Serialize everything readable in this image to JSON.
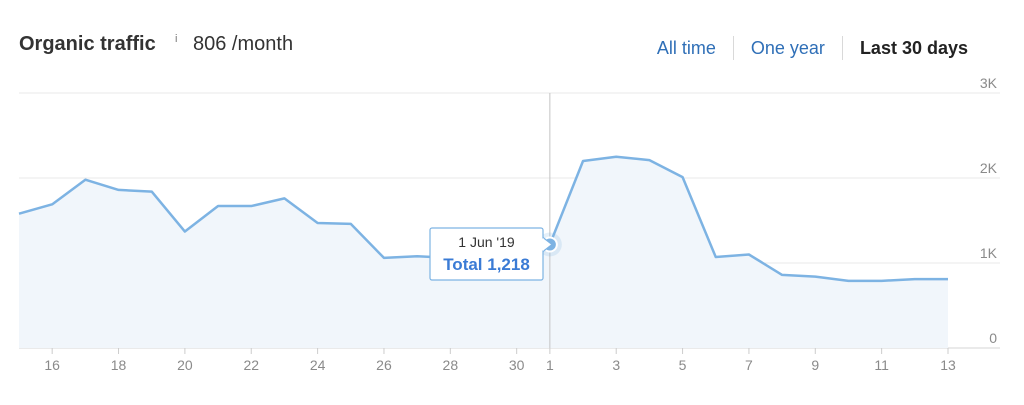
{
  "header": {
    "title": "Organic traffic",
    "info_icon": "i",
    "value": "806 /month",
    "ranges": [
      "All time",
      "One year",
      "Last 30 days"
    ],
    "active_range": "Last 30 days"
  },
  "chart_data": {
    "type": "area",
    "x": [
      "15",
      "16",
      "17",
      "18",
      "19",
      "20",
      "21",
      "22",
      "23",
      "24",
      "25",
      "26",
      "27",
      "28",
      "29",
      "30",
      "1",
      "2",
      "3",
      "4",
      "5",
      "6",
      "7",
      "8",
      "9",
      "10",
      "11",
      "12",
      "13"
    ],
    "x_ticks": [
      "16",
      "18",
      "20",
      "22",
      "24",
      "26",
      "28",
      "30",
      "1",
      "3",
      "5",
      "7",
      "9",
      "11",
      "13"
    ],
    "series": [
      {
        "values": [
          1580,
          1690,
          1980,
          1860,
          1840,
          1370,
          1670,
          1670,
          1760,
          1470,
          1460,
          1060,
          1080,
          1060,
          1070,
          1090,
          1218,
          2200,
          2250,
          2210,
          2010,
          1070,
          1100,
          860,
          840,
          790,
          790,
          810,
          810
        ]
      }
    ],
    "ylim": [
      0,
      3000
    ],
    "y_ticks": [
      0,
      1000,
      2000,
      3000
    ],
    "y_tick_labels": [
      "0",
      "1K",
      "2K",
      "3K"
    ],
    "y_axis_position": "right",
    "grid": true,
    "line_color": "#7db3e3",
    "fill_color": "#f1f6fb",
    "tooltip": {
      "date": "1 Jun '19",
      "total": "Total 1,218",
      "index": 16
    }
  }
}
